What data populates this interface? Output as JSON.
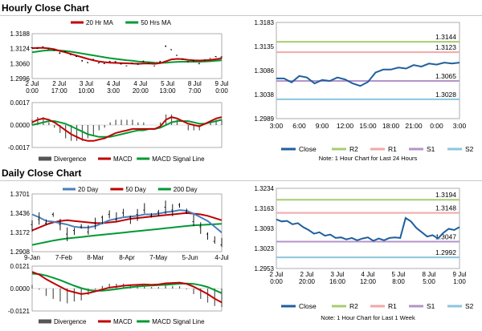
{
  "sections": {
    "hourly_title": "Hourly Close Chart",
    "daily_title": "Daily Close Chart"
  },
  "colors": {
    "price": "#000000",
    "ma_short": "#c00000",
    "ma_long": "#009933",
    "macd": "#c00000",
    "signal": "#009933",
    "divergence": "#555555",
    "close": "#1f5f9e",
    "r2": "#a8cc70",
    "r1": "#f2a8a8",
    "s1": "#b394c8",
    "s2": "#8cc6dd"
  },
  "chart_data": [
    {
      "id": "hourly_price",
      "type": "line",
      "legend": [
        {
          "name": "20 Hr MA",
          "color": "#c00000"
        },
        {
          "name": "50 Hrs MA",
          "color": "#009933"
        }
      ],
      "yticks": [
        "1.3188",
        "1.3124",
        "1.3060",
        "1.2996"
      ],
      "ylim": [
        1.2996,
        1.3188
      ],
      "xticks": [
        [
          "2 Jul",
          "0:00"
        ],
        [
          "2 Jul",
          "17:00"
        ],
        [
          "3 Jul",
          "10:00"
        ],
        [
          "4 Jul",
          "3:00"
        ],
        [
          "4 Jul",
          "20:00"
        ],
        [
          "5 Jul",
          "13:00"
        ],
        [
          "8 Jul",
          "7:00"
        ],
        [
          "9 Jul",
          "0:00"
        ]
      ],
      "series": [
        {
          "name": "Close",
          "values": [
            1.3128,
            1.3125,
            1.3132,
            1.3122,
            1.3118,
            1.3105,
            1.3112,
            1.3098,
            1.309,
            1.3072,
            1.3065,
            1.3078,
            1.3062,
            1.306,
            1.307,
            1.3068,
            1.3058,
            1.305,
            1.3062,
            1.3058,
            1.307,
            1.3062,
            1.305,
            1.3068,
            1.3135,
            1.312,
            1.3095,
            1.3078,
            1.3068,
            1.3072,
            1.306,
            1.3075,
            1.3082,
            1.309,
            1.3088
          ]
        },
        {
          "name": "20 Hr MA",
          "values": [
            1.3126,
            1.3127,
            1.3127,
            1.3125,
            1.3121,
            1.3114,
            1.3108,
            1.3101,
            1.3094,
            1.3087,
            1.308,
            1.3074,
            1.3069,
            1.3066,
            1.3064,
            1.3063,
            1.3062,
            1.3061,
            1.306,
            1.3059,
            1.306,
            1.306,
            1.3059,
            1.3062,
            1.307,
            1.3078,
            1.308,
            1.3079,
            1.3076,
            1.3074,
            1.3073,
            1.3074,
            1.3076,
            1.3079,
            1.3082
          ]
        },
        {
          "name": "50 Hrs MA",
          "values": [
            1.3108,
            1.3112,
            1.3115,
            1.3117,
            1.3117,
            1.3116,
            1.3114,
            1.3111,
            1.3107,
            1.3103,
            1.3099,
            1.3095,
            1.3091,
            1.3087,
            1.3083,
            1.308,
            1.3077,
            1.3074,
            1.3072,
            1.3069,
            1.3067,
            1.3066,
            1.3064,
            1.3063,
            1.3064,
            1.3066,
            1.3067,
            1.3068,
            1.3068,
            1.3068,
            1.3068,
            1.3069,
            1.307,
            1.3072,
            1.3074
          ]
        }
      ]
    },
    {
      "id": "hourly_macd",
      "type": "line",
      "yticks": [
        "0.0017",
        "0.0000",
        "-0.0017"
      ],
      "ylim": [
        -0.0017,
        0.0017
      ],
      "legend": [
        {
          "name": "Divergence",
          "color": "#555555"
        },
        {
          "name": "MACD",
          "color": "#c00000"
        },
        {
          "name": "MACD Signal Line",
          "color": "#009933"
        }
      ],
      "series": [
        {
          "name": "MACD",
          "values": [
            0.0002,
            0.0004,
            0.0005,
            0.0004,
            0.0002,
            -0.0001,
            -0.0004,
            -0.0007,
            -0.0009,
            -0.0011,
            -0.0012,
            -0.0012,
            -0.0011,
            -0.001,
            -0.0008,
            -0.0006,
            -0.0005,
            -0.0004,
            -0.0003,
            -0.0003,
            -0.0003,
            -0.0003,
            -0.0003,
            -0.0001,
            0.0004,
            0.0006,
            0.0005,
            0.0003,
            0.0001,
            0.0,
            -0.0001,
            0.0001,
            0.0003,
            0.0005,
            0.0006
          ]
        },
        {
          "name": "MACD Signal Line",
          "values": [
            0.0,
            0.0001,
            0.0002,
            0.0003,
            0.0003,
            0.0002,
            0.0001,
            -0.0001,
            -0.0003,
            -0.0005,
            -0.0007,
            -0.0008,
            -0.0009,
            -0.0009,
            -0.0009,
            -0.0008,
            -0.0007,
            -0.0006,
            -0.0005,
            -0.0004,
            -0.0004,
            -0.0003,
            -0.0003,
            -0.0002,
            0.0,
            0.0002,
            0.0003,
            0.0003,
            0.0003,
            0.0002,
            0.0001,
            0.0001,
            0.0002,
            0.0003,
            0.0004
          ]
        }
      ]
    },
    {
      "id": "hourly_pivot",
      "type": "line",
      "yticks": [
        "1.3183",
        "1.3135",
        "1.3086",
        "1.3038",
        "1.2989"
      ],
      "ylim": [
        1.2989,
        1.3183
      ],
      "xticks": [
        "3:00",
        "6:00",
        "9:00",
        "12:00",
        "15:00",
        "18:00",
        "21:00",
        "0:00",
        "3:00"
      ],
      "levels": [
        {
          "name": "R2",
          "value": 1.3144,
          "label": "1.3144",
          "color": "#a8cc70"
        },
        {
          "name": "R1",
          "value": 1.3123,
          "label": "1.3123",
          "color": "#f2a8a8"
        },
        {
          "name": "S1",
          "value": 1.3065,
          "label": "1.3065",
          "color": "#b394c8"
        },
        {
          "name": "S2",
          "value": 1.3028,
          "label": "1.3028",
          "color": "#8cc6dd"
        }
      ],
      "series": [
        {
          "name": "Close",
          "values": [
            1.307,
            1.307,
            1.3062,
            1.3075,
            1.3072,
            1.306,
            1.3067,
            1.3065,
            1.3072,
            1.3068,
            1.306,
            1.3055,
            1.3063,
            1.3082,
            1.3088,
            1.3088,
            1.3092,
            1.309,
            1.3097,
            1.3094,
            1.31,
            1.3098,
            1.3102,
            1.31,
            1.3102
          ]
        }
      ],
      "legend": [
        "Close",
        "R2",
        "R1",
        "S1",
        "S2"
      ],
      "note": "Note: 1 Hour Chart for Last 24 Hours"
    },
    {
      "id": "daily_price",
      "type": "line",
      "legend": [
        {
          "name": "20 Day",
          "color": "#4a7ebb"
        },
        {
          "name": "50 Day",
          "color": "#c00000"
        },
        {
          "name": "200 Day",
          "color": "#009933"
        }
      ],
      "yticks": [
        "1.3701",
        "1.3436",
        "1.3172",
        "1.2908"
      ],
      "ylim": [
        1.2908,
        1.3701
      ],
      "xticks": [
        "9-Jan",
        "7-Feb",
        "8-Mar",
        "8-Apr",
        "7-May",
        "5-Jun",
        "4-Jul"
      ],
      "series": [
        {
          "name": "Close",
          "values": [
            1.328,
            1.335,
            1.33,
            1.342,
            1.328,
            1.315,
            1.32,
            1.325,
            1.318,
            1.33,
            1.338,
            1.342,
            1.335,
            1.344,
            1.338,
            1.342,
            1.348,
            1.34,
            1.345,
            1.352,
            1.348,
            1.355,
            1.345,
            1.332,
            1.325,
            1.315,
            1.305,
            1.3
          ]
        },
        {
          "name": "20 Day",
          "values": [
            1.342,
            1.338,
            1.333,
            1.332,
            1.33,
            1.328,
            1.325,
            1.324,
            1.324,
            1.326,
            1.33,
            1.334,
            1.336,
            1.338,
            1.339,
            1.34,
            1.342,
            1.342,
            1.343,
            1.345,
            1.346,
            1.348,
            1.347,
            1.343,
            1.338,
            1.333,
            1.325,
            1.317
          ]
        },
        {
          "name": "50 Day",
          "values": [
            1.32,
            1.324,
            1.328,
            1.331,
            1.333,
            1.334,
            1.333,
            1.332,
            1.331,
            1.33,
            1.33,
            1.331,
            1.332,
            1.334,
            1.336,
            1.337,
            1.338,
            1.339,
            1.34,
            1.341,
            1.342,
            1.343,
            1.344,
            1.343,
            1.342,
            1.34,
            1.337,
            1.334
          ]
        },
        {
          "name": "200 Day",
          "values": [
            1.3,
            1.302,
            1.304,
            1.306,
            1.3075,
            1.309,
            1.31,
            1.311,
            1.312,
            1.313,
            1.314,
            1.315,
            1.316,
            1.317,
            1.318,
            1.319,
            1.32,
            1.321,
            1.322,
            1.323,
            1.324,
            1.325,
            1.326,
            1.327,
            1.3275,
            1.328,
            1.3285,
            1.329
          ]
        }
      ]
    },
    {
      "id": "daily_macd",
      "type": "line",
      "yticks": [
        "0.0121",
        "0.0000",
        "-0.0121"
      ],
      "ylim": [
        -0.0121,
        0.0121
      ],
      "legend": [
        {
          "name": "Divergence",
          "color": "#555555"
        },
        {
          "name": "MACD",
          "color": "#c00000"
        },
        {
          "name": "MACD Signal Line",
          "color": "#009933"
        }
      ],
      "series": [
        {
          "name": "MACD",
          "values": [
            0.009,
            0.0075,
            0.005,
            0.003,
            0.001,
            -0.001,
            -0.002,
            -0.003,
            -0.0025,
            -0.0015,
            -0.0005,
            0.0005,
            0.001,
            0.0015,
            0.0018,
            0.002,
            0.0022,
            0.002,
            0.0022,
            0.0028,
            0.003,
            0.0032,
            0.0025,
            0.001,
            -0.001,
            -0.003,
            -0.0055,
            -0.0075
          ]
        },
        {
          "name": "MACD Signal Line",
          "values": [
            0.008,
            0.0078,
            0.007,
            0.0058,
            0.0045,
            0.003,
            0.0015,
            0.0002,
            -0.0008,
            -0.0012,
            -0.0012,
            -0.0008,
            -0.0003,
            0.0002,
            0.0007,
            0.0011,
            0.0014,
            0.0016,
            0.0018,
            0.002,
            0.0023,
            0.0026,
            0.0027,
            0.0025,
            0.0018,
            0.0008,
            -0.0008,
            -0.0025
          ]
        }
      ]
    },
    {
      "id": "daily_pivot",
      "type": "line",
      "yticks": [
        "1.3234",
        "1.3163",
        "1.3093",
        "1.3023",
        "1.2953"
      ],
      "ylim": [
        1.2953,
        1.3234
      ],
      "xticks": [
        [
          "2 Jul",
          "0:00"
        ],
        [
          "2 Jul",
          "20:00"
        ],
        [
          "3 Jul",
          "16:00"
        ],
        [
          "4 Jul",
          "12:00"
        ],
        [
          "5 Jul",
          "8:00"
        ],
        [
          "8 Jul",
          "5:00"
        ],
        [
          "9 Jul",
          "1:00"
        ]
      ],
      "levels": [
        {
          "name": "R2",
          "value": 1.3194,
          "label": "1.3194",
          "color": "#a8cc70"
        },
        {
          "name": "R1",
          "value": 1.3148,
          "label": "1.3148",
          "color": "#f2a8a8"
        },
        {
          "name": "S1",
          "value": 1.3047,
          "label": "1.3047",
          "color": "#b394c8"
        },
        {
          "name": "S2",
          "value": 1.2992,
          "label": "1.2992",
          "color": "#8cc6dd"
        }
      ],
      "series": [
        {
          "name": "Close",
          "values": [
            1.3125,
            1.3118,
            1.312,
            1.3108,
            1.3112,
            1.3098,
            1.3088,
            1.3075,
            1.308,
            1.3068,
            1.3072,
            1.306,
            1.3062,
            1.3055,
            1.306,
            1.3052,
            1.3058,
            1.3062,
            1.305,
            1.3058,
            1.3052,
            1.306,
            1.3062,
            1.306,
            1.313,
            1.3118,
            1.3095,
            1.308,
            1.3065,
            1.307,
            1.3058,
            1.3078,
            1.3092,
            1.3088,
            1.3098
          ]
        }
      ],
      "legend": [
        "Close",
        "R2",
        "R1",
        "S1",
        "S2"
      ],
      "note": "Note: 1 Hour Chart for Last 1 Week"
    }
  ]
}
